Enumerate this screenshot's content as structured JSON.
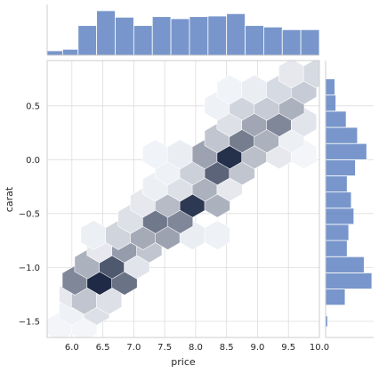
{
  "chart_data": {
    "type": "hexbin-joint",
    "xlabel": "price",
    "ylabel": "carat",
    "xlim": [
      5.6,
      10.0
    ],
    "ylim": [
      -1.65,
      0.92
    ],
    "x_ticks": [
      6.0,
      6.5,
      7.0,
      7.5,
      8.0,
      8.5,
      9.0,
      9.5,
      10.0
    ],
    "x_tick_labels": [
      "6.0",
      "6.5",
      "7.0",
      "7.5",
      "8.0",
      "8.5",
      "9.0",
      "9.5",
      "10.0"
    ],
    "y_ticks": [
      -1.5,
      -1.0,
      -0.5,
      0.0,
      0.5
    ],
    "y_tick_labels": [
      "−1.5",
      "−1.0",
      "−0.5",
      "0.0",
      "0.5"
    ],
    "grid": true,
    "colormap": [
      "#f7f9fd",
      "#1e2a46"
    ],
    "hexbins": [
      {
        "x": 5.8,
        "y": -1.55,
        "v": 0.02
      },
      {
        "x": 6.2,
        "y": -1.55,
        "v": 0.02
      },
      {
        "x": 6.0,
        "y": -1.4,
        "v": 0.04
      },
      {
        "x": 6.4,
        "y": -1.4,
        "v": 0.12
      },
      {
        "x": 6.0,
        "y": -1.25,
        "v": 0.08
      },
      {
        "x": 6.2,
        "y": -1.3,
        "v": 0.25
      },
      {
        "x": 6.6,
        "y": -1.3,
        "v": 0.12
      },
      {
        "x": 6.05,
        "y": -1.12,
        "v": 0.55
      },
      {
        "x": 6.45,
        "y": -1.12,
        "v": 1.0
      },
      {
        "x": 6.85,
        "y": -1.12,
        "v": 0.65
      },
      {
        "x": 6.25,
        "y": -0.97,
        "v": 0.35
      },
      {
        "x": 6.65,
        "y": -0.97,
        "v": 0.78
      },
      {
        "x": 7.05,
        "y": -0.97,
        "v": 0.1
      },
      {
        "x": 6.45,
        "y": -0.82,
        "v": 0.08
      },
      {
        "x": 6.85,
        "y": -0.82,
        "v": 0.45
      },
      {
        "x": 7.25,
        "y": -0.82,
        "v": 0.25
      },
      {
        "x": 6.35,
        "y": -0.7,
        "v": 0.05
      },
      {
        "x": 6.75,
        "y": -0.7,
        "v": 0.18
      },
      {
        "x": 7.15,
        "y": -0.7,
        "v": 0.38
      },
      {
        "x": 7.55,
        "y": -0.7,
        "v": 0.42
      },
      {
        "x": 7.95,
        "y": -0.7,
        "v": 0.06
      },
      {
        "x": 8.35,
        "y": -0.7,
        "v": 0.04
      },
      {
        "x": 6.95,
        "y": -0.55,
        "v": 0.12
      },
      {
        "x": 7.35,
        "y": -0.55,
        "v": 0.62
      },
      {
        "x": 7.75,
        "y": -0.55,
        "v": 0.55
      },
      {
        "x": 7.15,
        "y": -0.4,
        "v": 0.08
      },
      {
        "x": 7.55,
        "y": -0.4,
        "v": 0.3
      },
      {
        "x": 7.95,
        "y": -0.4,
        "v": 0.93
      },
      {
        "x": 8.35,
        "y": -0.4,
        "v": 0.35
      },
      {
        "x": 7.35,
        "y": -0.25,
        "v": 0.05
      },
      {
        "x": 7.75,
        "y": -0.25,
        "v": 0.12
      },
      {
        "x": 8.15,
        "y": -0.25,
        "v": 0.35
      },
      {
        "x": 8.55,
        "y": -0.25,
        "v": 0.08
      },
      {
        "x": 7.55,
        "y": -0.1,
        "v": 0.04
      },
      {
        "x": 7.95,
        "y": -0.1,
        "v": 0.2
      },
      {
        "x": 8.35,
        "y": -0.1,
        "v": 0.72
      },
      {
        "x": 8.75,
        "y": -0.1,
        "v": 0.25
      },
      {
        "x": 7.35,
        "y": 0.05,
        "v": 0.03
      },
      {
        "x": 7.75,
        "y": 0.05,
        "v": 0.06
      },
      {
        "x": 8.15,
        "y": 0.05,
        "v": 0.42
      },
      {
        "x": 8.55,
        "y": 0.05,
        "v": 0.97
      },
      {
        "x": 8.95,
        "y": 0.05,
        "v": 0.28
      },
      {
        "x": 9.35,
        "y": 0.05,
        "v": 0.08
      },
      {
        "x": 9.75,
        "y": 0.05,
        "v": 0.02
      },
      {
        "x": 8.35,
        "y": 0.2,
        "v": 0.25
      },
      {
        "x": 8.75,
        "y": 0.2,
        "v": 0.6
      },
      {
        "x": 9.15,
        "y": 0.2,
        "v": 0.35
      },
      {
        "x": 9.55,
        "y": 0.2,
        "v": 0.05
      },
      {
        "x": 8.55,
        "y": 0.35,
        "v": 0.12
      },
      {
        "x": 8.95,
        "y": 0.35,
        "v": 0.4
      },
      {
        "x": 9.35,
        "y": 0.35,
        "v": 0.55
      },
      {
        "x": 9.75,
        "y": 0.35,
        "v": 0.1
      },
      {
        "x": 8.35,
        "y": 0.5,
        "v": 0.04
      },
      {
        "x": 8.75,
        "y": 0.5,
        "v": 0.18
      },
      {
        "x": 9.15,
        "y": 0.5,
        "v": 0.22
      },
      {
        "x": 9.55,
        "y": 0.5,
        "v": 0.35
      },
      {
        "x": 8.55,
        "y": 0.65,
        "v": 0.03
      },
      {
        "x": 8.95,
        "y": 0.65,
        "v": 0.06
      },
      {
        "x": 9.35,
        "y": 0.65,
        "v": 0.15
      },
      {
        "x": 9.75,
        "y": 0.65,
        "v": 0.22
      },
      {
        "x": 9.55,
        "y": 0.8,
        "v": 0.08
      },
      {
        "x": 9.95,
        "y": 0.8,
        "v": 0.15
      }
    ],
    "x_marginal": {
      "bin_edges": [
        5.6,
        5.85,
        6.1,
        6.4,
        6.7,
        7.0,
        7.3,
        7.6,
        7.9,
        8.2,
        8.5,
        8.8,
        9.1,
        9.4,
        9.7,
        10.0
      ],
      "values": [
        0.15,
        0.2,
        1.0,
        1.5,
        1.28,
        1.0,
        1.3,
        1.23,
        1.3,
        1.32,
        1.4,
        1.0,
        0.95,
        0.86,
        0.86
      ]
    },
    "y_marginal": {
      "bin_edges": [
        -1.55,
        -1.45,
        -1.35,
        -1.2,
        -1.05,
        -0.9,
        -0.75,
        -0.6,
        -0.45,
        -0.3,
        -0.15,
        0.0,
        0.15,
        0.3,
        0.45,
        0.6,
        0.75
      ],
      "values": [
        0.04,
        0.0,
        0.38,
        0.9,
        0.75,
        0.42,
        0.45,
        0.55,
        0.5,
        0.42,
        0.58,
        0.8,
        0.62,
        0.4,
        0.2,
        0.18
      ]
    }
  }
}
